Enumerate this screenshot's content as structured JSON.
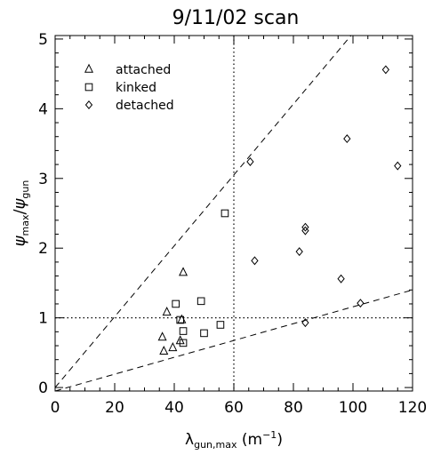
{
  "chart_data": {
    "type": "scatter",
    "title": "9/11/02 scan",
    "xlabel": {
      "symbol": "λ",
      "sub": "gun,max",
      "unit_open": " (m",
      "unit_sup": "−1",
      "unit_close": ")"
    },
    "ylabel": {
      "num": "ψ",
      "num_sub": "max",
      "slash": "/",
      "den": "ψ",
      "den_sub": "gun"
    },
    "xlim": [
      0,
      120
    ],
    "ylim": [
      -0.05,
      5.05
    ],
    "xticks": [
      0,
      20,
      40,
      60,
      80,
      100,
      120
    ],
    "yticks": [
      0,
      1,
      2,
      3,
      4,
      5
    ],
    "legend_position": "top-left",
    "grid": false,
    "reference_lines": {
      "vertical_dotted_x": 60,
      "horizontal_dotted_y": 1,
      "dashed_lines": [
        {
          "from": [
            0,
            0
          ],
          "to": [
            120,
            6.1
          ]
        },
        {
          "from": [
            0,
            -0.05
          ],
          "to": [
            120,
            1.4
          ]
        }
      ]
    },
    "series": [
      {
        "name": "attached",
        "marker": "triangle",
        "points": [
          [
            36,
            0.72
          ],
          [
            36.5,
            0.52
          ],
          [
            37.5,
            1.08
          ],
          [
            39.5,
            0.57
          ],
          [
            42,
            0.67
          ],
          [
            42.5,
            0.97
          ],
          [
            43,
            1.65
          ]
        ]
      },
      {
        "name": "kinked",
        "marker": "square",
        "points": [
          [
            40.5,
            1.2
          ],
          [
            42,
            0.97
          ],
          [
            43,
            0.64
          ],
          [
            43,
            0.81
          ],
          [
            49,
            1.24
          ],
          [
            50,
            0.78
          ],
          [
            55.5,
            0.9
          ],
          [
            57,
            2.5
          ]
        ]
      },
      {
        "name": "detached",
        "marker": "diamond",
        "points": [
          [
            65.5,
            3.24
          ],
          [
            67,
            1.82
          ],
          [
            82,
            1.95
          ],
          [
            84,
            2.25
          ],
          [
            84,
            2.3
          ],
          [
            84,
            0.93
          ],
          [
            96,
            1.56
          ],
          [
            98,
            3.57
          ],
          [
            102.5,
            1.21
          ],
          [
            111,
            4.56
          ],
          [
            115,
            3.18
          ]
        ]
      }
    ]
  }
}
